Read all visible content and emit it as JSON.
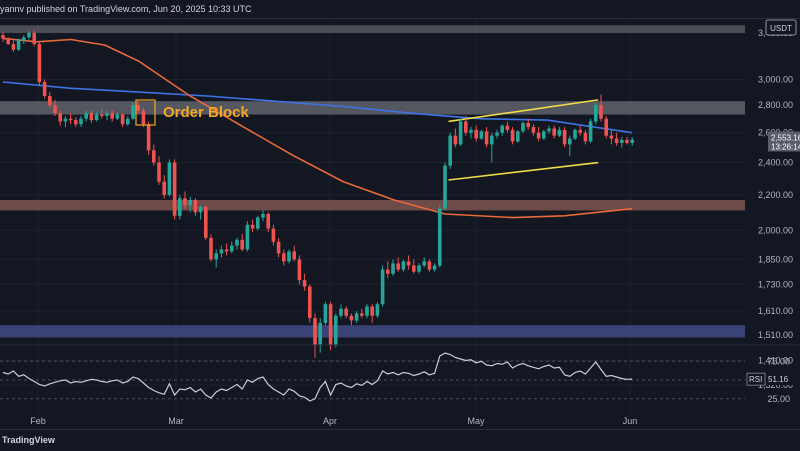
{
  "header": {
    "publish_text": "yannv published on TradingView.com, Jun 20, 2025 10:33 UTC"
  },
  "footer": {
    "brand": "TradingView"
  },
  "chart_data": {
    "type": "candlestick",
    "currency": "USDT",
    "y_scale": "log",
    "ylim": [
      1285,
      3520
    ],
    "price_ticks": [
      "3,400.00",
      "3,000.00",
      "2,800.00",
      "2,600.00",
      "2,400.00",
      "2,200.00",
      "2,000.00",
      "1,850.00",
      "1,730.00",
      "1,610.00",
      "1,510.00",
      "1,410.00",
      "1,320.00"
    ],
    "time_labels": [
      "Feb",
      "Mar",
      "Apr",
      "May",
      "Jun"
    ],
    "current_price": "2,553.16",
    "countdown": "13:26:14",
    "annotation": "Order Block",
    "zones": [
      {
        "kind": "resistance",
        "low": 3400,
        "high": 3470,
        "color": "#5d6068"
      },
      {
        "kind": "order-block",
        "low": 2730,
        "high": 2830,
        "color": "#6b6e74"
      },
      {
        "kind": "support-red",
        "low": 2110,
        "high": 2170,
        "color": "#8b5d55"
      },
      {
        "kind": "support-blue",
        "low": 1500,
        "high": 1550,
        "color": "#4a5193"
      }
    ],
    "channel": {
      "color": "#f0dc4a",
      "upper": [
        [
          131,
          2680
        ],
        [
          175,
          2840
        ]
      ],
      "lower": [
        [
          131,
          2290
        ],
        [
          175,
          2400
        ]
      ]
    },
    "ma_slow": {
      "color": "#3d73e6",
      "points": [
        [
          0,
          2980
        ],
        [
          20,
          2930
        ],
        [
          40,
          2900
        ],
        [
          60,
          2870
        ],
        [
          80,
          2830
        ],
        [
          100,
          2790
        ],
        [
          120,
          2740
        ],
        [
          140,
          2700
        ],
        [
          160,
          2690
        ],
        [
          185,
          2600
        ]
      ]
    },
    "ma_fast": {
      "color": "#e8693b",
      "points": [
        [
          0,
          3350
        ],
        [
          10,
          3320
        ],
        [
          20,
          3340
        ],
        [
          30,
          3290
        ],
        [
          40,
          3150
        ],
        [
          55,
          2870
        ],
        [
          70,
          2650
        ],
        [
          85,
          2450
        ],
        [
          100,
          2280
        ],
        [
          115,
          2170
        ],
        [
          130,
          2090
        ],
        [
          150,
          2070
        ],
        [
          165,
          2080
        ],
        [
          185,
          2120
        ]
      ]
    },
    "candles": [
      [
        3380,
        3410,
        3320,
        3350
      ],
      [
        3350,
        3360,
        3290,
        3300
      ],
      [
        3300,
        3330,
        3230,
        3250
      ],
      [
        3250,
        3350,
        3240,
        3330
      ],
      [
        3330,
        3380,
        3300,
        3360
      ],
      [
        3360,
        3420,
        3340,
        3400
      ],
      [
        3400,
        3420,
        3280,
        3300
      ],
      [
        3300,
        3320,
        2950,
        2980
      ],
      [
        2980,
        3000,
        2850,
        2870
      ],
      [
        2870,
        2900,
        2780,
        2800
      ],
      [
        2800,
        2840,
        2720,
        2740
      ],
      [
        2740,
        2760,
        2650,
        2680
      ],
      [
        2680,
        2720,
        2640,
        2700
      ],
      [
        2700,
        2740,
        2660,
        2690
      ],
      [
        2690,
        2710,
        2640,
        2660
      ],
      [
        2660,
        2720,
        2640,
        2700
      ],
      [
        2700,
        2760,
        2680,
        2740
      ],
      [
        2740,
        2760,
        2670,
        2690
      ],
      [
        2690,
        2750,
        2680,
        2730
      ],
      [
        2730,
        2770,
        2700,
        2720
      ],
      [
        2720,
        2760,
        2690,
        2740
      ],
      [
        2740,
        2760,
        2680,
        2700
      ],
      [
        2700,
        2750,
        2690,
        2730
      ],
      [
        2730,
        2740,
        2640,
        2660
      ],
      [
        2660,
        2720,
        2650,
        2700
      ],
      [
        2700,
        2820,
        2690,
        2800
      ],
      [
        2800,
        2830,
        2740,
        2760
      ],
      [
        2760,
        2780,
        2640,
        2660
      ],
      [
        2660,
        2680,
        2450,
        2480
      ],
      [
        2480,
        2520,
        2380,
        2400
      ],
      [
        2400,
        2440,
        2260,
        2280
      ],
      [
        2280,
        2320,
        2180,
        2200
      ],
      [
        2200,
        2420,
        2190,
        2400
      ],
      [
        2400,
        2420,
        2060,
        2080
      ],
      [
        2080,
        2200,
        2060,
        2180
      ],
      [
        2180,
        2220,
        2120,
        2140
      ],
      [
        2140,
        2190,
        2100,
        2170
      ],
      [
        2170,
        2180,
        2080,
        2100
      ],
      [
        2100,
        2140,
        2060,
        2130
      ],
      [
        2130,
        2140,
        1950,
        1960
      ],
      [
        1960,
        1980,
        1840,
        1850
      ],
      [
        1850,
        1900,
        1810,
        1880
      ],
      [
        1880,
        1920,
        1860,
        1900
      ],
      [
        1900,
        1930,
        1870,
        1890
      ],
      [
        1890,
        1940,
        1880,
        1920
      ],
      [
        1920,
        1960,
        1900,
        1950
      ],
      [
        1950,
        1980,
        1890,
        1900
      ],
      [
        1900,
        2050,
        1890,
        2030
      ],
      [
        2030,
        2060,
        1990,
        2010
      ],
      [
        2010,
        2080,
        2000,
        2070
      ],
      [
        2070,
        2110,
        2050,
        2090
      ],
      [
        2090,
        2100,
        1990,
        2010
      ],
      [
        2010,
        2030,
        1920,
        1940
      ],
      [
        1940,
        1960,
        1860,
        1880
      ],
      [
        1880,
        1900,
        1820,
        1840
      ],
      [
        1840,
        1900,
        1830,
        1890
      ],
      [
        1890,
        1920,
        1840,
        1850
      ],
      [
        1850,
        1870,
        1730,
        1750
      ],
      [
        1750,
        1780,
        1700,
        1720
      ],
      [
        1720,
        1730,
        1560,
        1580
      ],
      [
        1580,
        1600,
        1420,
        1470
      ],
      [
        1470,
        1580,
        1440,
        1560
      ],
      [
        1560,
        1650,
        1550,
        1640
      ],
      [
        1640,
        1650,
        1450,
        1470
      ],
      [
        1470,
        1600,
        1460,
        1590
      ],
      [
        1590,
        1640,
        1580,
        1620
      ],
      [
        1620,
        1630,
        1580,
        1590
      ],
      [
        1590,
        1600,
        1550,
        1570
      ],
      [
        1570,
        1610,
        1560,
        1600
      ],
      [
        1600,
        1620,
        1580,
        1590
      ],
      [
        1590,
        1640,
        1580,
        1630
      ],
      [
        1630,
        1640,
        1560,
        1590
      ],
      [
        1590,
        1650,
        1580,
        1640
      ],
      [
        1640,
        1820,
        1630,
        1800
      ],
      [
        1800,
        1840,
        1760,
        1780
      ],
      [
        1780,
        1850,
        1770,
        1830
      ],
      [
        1830,
        1860,
        1790,
        1800
      ],
      [
        1800,
        1850,
        1790,
        1840
      ],
      [
        1840,
        1870,
        1800,
        1820
      ],
      [
        1820,
        1850,
        1780,
        1790
      ],
      [
        1790,
        1830,
        1780,
        1820
      ],
      [
        1820,
        1860,
        1810,
        1840
      ],
      [
        1840,
        1850,
        1790,
        1800
      ],
      [
        1800,
        1830,
        1790,
        1820
      ],
      [
        1820,
        2140,
        1810,
        2120
      ],
      [
        2120,
        2400,
        2110,
        2380
      ],
      [
        2380,
        2600,
        2360,
        2580
      ],
      [
        2580,
        2630,
        2500,
        2520
      ],
      [
        2520,
        2700,
        2510,
        2680
      ],
      [
        2680,
        2720,
        2580,
        2600
      ],
      [
        2600,
        2640,
        2560,
        2620
      ],
      [
        2620,
        2650,
        2540,
        2560
      ],
      [
        2560,
        2620,
        2550,
        2610
      ],
      [
        2610,
        2640,
        2500,
        2520
      ],
      [
        2520,
        2600,
        2400,
        2580
      ],
      [
        2580,
        2620,
        2560,
        2600
      ],
      [
        2600,
        2660,
        2580,
        2650
      ],
      [
        2650,
        2680,
        2600,
        2620
      ],
      [
        2620,
        2640,
        2520,
        2540
      ],
      [
        2540,
        2620,
        2530,
        2610
      ],
      [
        2610,
        2680,
        2600,
        2670
      ],
      [
        2670,
        2700,
        2620,
        2640
      ],
      [
        2640,
        2660,
        2580,
        2600
      ],
      [
        2600,
        2640,
        2540,
        2560
      ],
      [
        2560,
        2620,
        2550,
        2610
      ],
      [
        2610,
        2650,
        2590,
        2630
      ],
      [
        2630,
        2650,
        2560,
        2580
      ],
      [
        2580,
        2640,
        2570,
        2620
      ],
      [
        2620,
        2640,
        2500,
        2520
      ],
      [
        2520,
        2580,
        2440,
        2560
      ],
      [
        2560,
        2630,
        2550,
        2620
      ],
      [
        2620,
        2650,
        2580,
        2600
      ],
      [
        2600,
        2620,
        2520,
        2540
      ],
      [
        2540,
        2700,
        2530,
        2680
      ],
      [
        2680,
        2820,
        2660,
        2800
      ],
      [
        2800,
        2880,
        2680,
        2700
      ],
      [
        2700,
        2720,
        2560,
        2580
      ],
      [
        2580,
        2620,
        2520,
        2560
      ],
      [
        2560,
        2600,
        2510,
        2530
      ],
      [
        2530,
        2570,
        2500,
        2550
      ],
      [
        2550,
        2570,
        2520,
        2530
      ],
      [
        2530,
        2570,
        2510,
        2553
      ]
    ],
    "rsi": {
      "label": "RSI",
      "value": "51.16",
      "levels": [
        "75.00",
        "50.00",
        "25.00"
      ],
      "color": "#c9cdd6",
      "values": [
        60,
        58,
        62,
        55,
        57,
        52,
        48,
        44,
        42,
        45,
        47,
        49,
        50,
        46,
        48,
        47,
        49,
        51,
        50,
        48,
        47,
        49,
        50,
        46,
        48,
        54,
        52,
        46,
        40,
        36,
        33,
        31,
        45,
        30,
        38,
        37,
        40,
        34,
        38,
        30,
        26,
        34,
        38,
        36,
        40,
        44,
        38,
        50,
        47,
        52,
        54,
        44,
        38,
        34,
        30,
        38,
        35,
        29,
        27,
        22,
        25,
        40,
        48,
        30,
        44,
        46,
        42,
        40,
        45,
        43,
        48,
        44,
        49,
        62,
        58,
        60,
        57,
        60,
        59,
        56,
        58,
        61,
        57,
        59,
        82,
        86,
        84,
        80,
        78,
        76,
        77,
        73,
        75,
        70,
        69,
        72,
        71,
        74,
        66,
        70,
        72,
        69,
        67,
        65,
        68,
        70,
        66,
        67,
        57,
        55,
        60,
        62,
        58,
        66,
        74,
        64,
        55,
        56,
        54,
        52,
        51,
        51.16
      ]
    }
  }
}
